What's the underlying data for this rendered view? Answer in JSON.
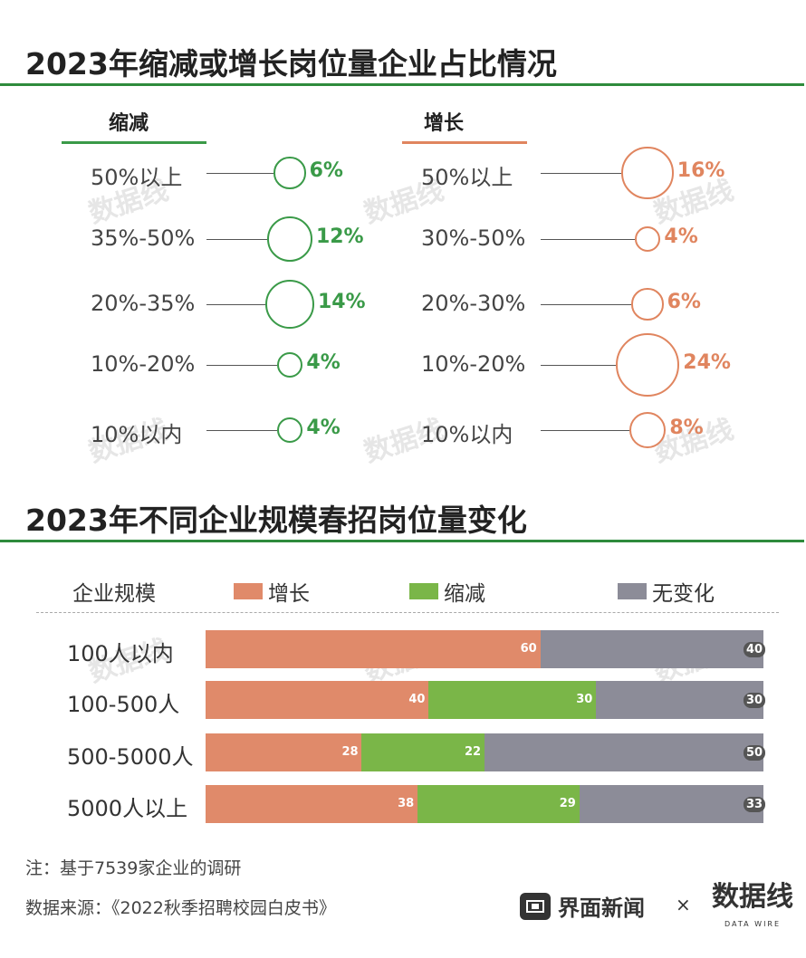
{
  "section1": {
    "title": "2023年缩减或增长岗位量企业占比情况",
    "left_header": "缩减",
    "right_header": "增长"
  },
  "section2": {
    "title": "2023年不同企业规模春招岗位量变化"
  },
  "watermark": {
    "main": "数据线",
    "sub": "DATA WIRE"
  },
  "notes": {
    "note1": "注：基于7539家企业的调研",
    "source": "数据来源：《2022秋季招聘校园白皮书》"
  },
  "brand": {
    "name": "界面新闻",
    "times": "×",
    "partner": "数据线",
    "partner_sub": "DATA WIRE"
  },
  "colors": {
    "green": "#3a9a48",
    "orange": "#e0855f",
    "bar_green": "#7ab648",
    "bar_orange": "#e08a6a",
    "bar_gray": "#8c8c98",
    "rule_green": "#2e8b3c"
  },
  "chart_data": [
    {
      "type": "bubble",
      "title": "缩减",
      "categories": [
        "50%以上",
        "35%-50%",
        "20%-35%",
        "10%-20%",
        "10%以内"
      ],
      "values": [
        6,
        12,
        14,
        4,
        4
      ],
      "labels": [
        "6%",
        "12%",
        "14%",
        "4%",
        "4%"
      ],
      "color": "#3a9a48"
    },
    {
      "type": "bubble",
      "title": "增长",
      "categories": [
        "50%以上",
        "30%-50%",
        "20%-30%",
        "10%-20%",
        "10%以内"
      ],
      "values": [
        16,
        4,
        6,
        24,
        8
      ],
      "labels": [
        "16%",
        "4%",
        "6%",
        "24%",
        "8%"
      ],
      "color": "#e0855f"
    },
    {
      "type": "bar",
      "orientation": "horizontal",
      "stacked": true,
      "title": "2023年不同企业规模春招岗位量变化",
      "legend_title": "企业规模",
      "categories": [
        "100人以内",
        "100-500人",
        "500-5000人",
        "5000人以上"
      ],
      "series": [
        {
          "name": "增长",
          "values": [
            60,
            40,
            28,
            38
          ]
        },
        {
          "name": "缩减",
          "values": [
            0,
            30,
            22,
            29
          ]
        },
        {
          "name": "无变化",
          "values": [
            40,
            30,
            50,
            33
          ]
        }
      ]
    }
  ]
}
